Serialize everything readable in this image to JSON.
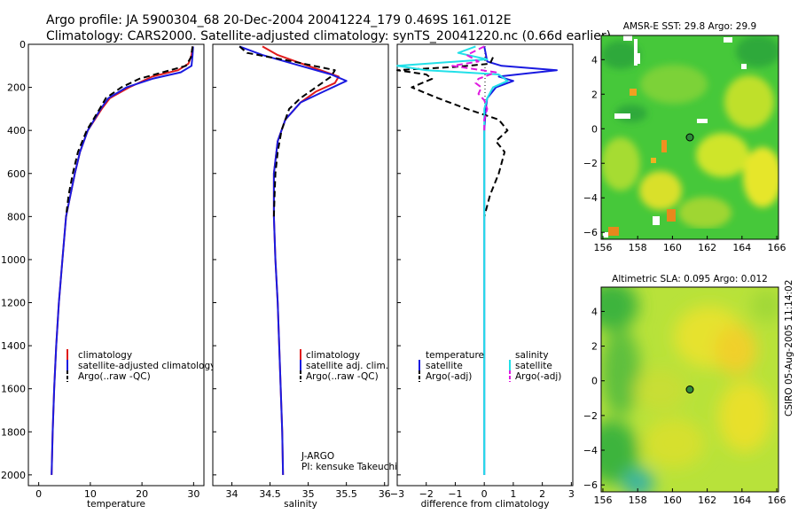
{
  "figure": {
    "title_line1": "Argo profile: JA 5900304_68 20-Dec-2004 20041224_179 0.469S 161.012E",
    "title_line2": "Climatology: CARS2000. Satellite-adjusted climatology: synTS_20041220.nc (0.66d earlier)",
    "credit": "CSIRO 05-Aug-2005 11:14:02"
  },
  "chart_data": [
    {
      "type": "line",
      "id": "temperature",
      "xlabel": "temperature",
      "ylabel": "",
      "xlim": [
        -2,
        32
      ],
      "ylim": [
        2050,
        0
      ],
      "x_ticks": [
        0,
        10,
        20,
        30
      ],
      "y_ticks": [
        0,
        200,
        400,
        600,
        800,
        1000,
        1200,
        1400,
        1600,
        1800,
        2000
      ],
      "legend": [
        "climatology",
        "satellite-adjusted climatology",
        "Argo(..raw -QC)"
      ],
      "series": [
        {
          "name": "climatology",
          "color": "#e01a1a",
          "dash": "",
          "depth": [
            10,
            50,
            90,
            120,
            150,
            200,
            250,
            300,
            400,
            500,
            600,
            800,
            1000,
            1200,
            1400,
            1600,
            1800,
            2000
          ],
          "values": [
            29.8,
            29.6,
            29.0,
            27.0,
            22.0,
            17.5,
            13.8,
            12.2,
            9.5,
            8.0,
            7.0,
            5.3,
            4.6,
            3.9,
            3.4,
            3.0,
            2.7,
            2.5
          ]
        },
        {
          "name": "satellite-adjusted climatology",
          "color": "#1a1ae0",
          "dash": "",
          "depth": [
            10,
            50,
            100,
            130,
            160,
            200,
            250,
            300,
            400,
            500,
            600,
            800,
            1000,
            1200,
            1400,
            1600,
            1800,
            2000
          ],
          "values": [
            29.9,
            29.8,
            29.6,
            27.5,
            22.0,
            17.0,
            13.5,
            12.0,
            9.5,
            8.0,
            7.0,
            5.3,
            4.6,
            3.9,
            3.4,
            3.0,
            2.7,
            2.5
          ]
        },
        {
          "name": "Argo(..raw -QC)",
          "color": "#000000",
          "dash": "7,4",
          "depth": [
            10,
            60,
            100,
            130,
            160,
            200,
            250,
            300,
            400,
            500,
            600,
            700,
            800
          ],
          "values": [
            29.8,
            29.5,
            28.5,
            24.0,
            19.5,
            16.0,
            13.0,
            11.8,
            9.3,
            7.6,
            6.6,
            5.8,
            5.3
          ]
        }
      ]
    },
    {
      "type": "line",
      "id": "salinity",
      "xlabel": "salinity",
      "ylabel": "",
      "xlim": [
        33.75,
        36.05
      ],
      "ylim": [
        2050,
        0
      ],
      "x_ticks": [
        34,
        34.5,
        35,
        35.5,
        36
      ],
      "legend": [
        "climatology",
        "satellite adj. clim.",
        "Argo(..raw -QC)"
      ],
      "annotation_lines": [
        "J-ARGO",
        "PI: kensuke Takeuchi"
      ],
      "series": [
        {
          "name": "climatology",
          "color": "#e01a1a",
          "dash": "",
          "depth": [
            10,
            50,
            100,
            150,
            180,
            220,
            270,
            350,
            450,
            600,
            800,
            1000,
            1200,
            1400,
            1600,
            1800,
            2000
          ],
          "values": [
            34.4,
            34.6,
            35.0,
            35.4,
            35.35,
            35.1,
            34.9,
            34.7,
            34.6,
            34.55,
            34.55,
            34.57,
            34.6,
            34.62,
            34.64,
            34.66,
            34.67
          ]
        },
        {
          "name": "satellite adj. clim.",
          "color": "#1a1ae0",
          "dash": "",
          "depth": [
            10,
            50,
            100,
            140,
            170,
            220,
            270,
            350,
            450,
            600,
            800,
            1000,
            1200,
            1400,
            1600,
            1800,
            2000
          ],
          "values": [
            34.1,
            34.4,
            34.9,
            35.3,
            35.5,
            35.2,
            34.9,
            34.7,
            34.6,
            34.55,
            34.55,
            34.57,
            34.6,
            34.62,
            34.64,
            34.66,
            34.67
          ]
        },
        {
          "name": "Argo(..raw -QC)",
          "color": "#000000",
          "dash": "7,4",
          "depth": [
            10,
            40,
            80,
            120,
            150,
            200,
            250,
            300,
            400,
            500,
            600,
            700,
            800
          ],
          "values": [
            34.1,
            34.2,
            34.8,
            35.35,
            35.3,
            35.1,
            34.9,
            34.75,
            34.65,
            34.6,
            34.57,
            34.56,
            34.55
          ]
        }
      ]
    },
    {
      "type": "line",
      "id": "difference",
      "xlabel": "difference from climatology",
      "ylabel": "",
      "xlim": [
        -3,
        3.05
      ],
      "ylim": [
        2050,
        0
      ],
      "x_ticks": [
        -3,
        -2,
        -1,
        0,
        1,
        2,
        3
      ],
      "legend": [
        "temperature",
        "satellite",
        "Argo(-adj)",
        "salinity",
        "satellite",
        "Argo(-adj)"
      ],
      "series": [
        {
          "name": "temperature satellite",
          "color": "#1a1ae0",
          "dash": "",
          "depth": [
            10,
            80,
            100,
            120,
            135,
            150,
            170,
            200,
            250,
            300,
            400,
            600,
            800,
            1000,
            1500,
            2000
          ],
          "values": [
            0.0,
            0.1,
            0.6,
            2.5,
            1.5,
            0.5,
            1.0,
            0.4,
            0.1,
            0.05,
            0.0,
            0.0,
            0.0,
            0.0,
            0.0,
            0.0
          ]
        },
        {
          "name": "temperature Argo(-adj)",
          "color": "#000000",
          "dash": "7,4",
          "depth": [
            60,
            90,
            105,
            120,
            140,
            160,
            200,
            250,
            300,
            350,
            400,
            450,
            500,
            600,
            700,
            800
          ],
          "values": [
            0.3,
            0.2,
            -1.0,
            -3.0,
            -2.0,
            -1.8,
            -2.5,
            -1.6,
            -0.6,
            0.5,
            0.8,
            0.4,
            0.7,
            0.5,
            0.2,
            0.0
          ]
        },
        {
          "name": "salinity satellite",
          "color": "#22e0e8",
          "dash": "",
          "depth": [
            10,
            40,
            70,
            100,
            120,
            140,
            170,
            200,
            250,
            300,
            400,
            600,
            800,
            1000,
            1500,
            2000
          ],
          "values": [
            -0.3,
            -0.9,
            0.1,
            -3.0,
            -2.0,
            0.5,
            0.8,
            0.3,
            0.1,
            0.0,
            0.0,
            0.0,
            0.0,
            0.0,
            0.0,
            0.0
          ]
        },
        {
          "name": "salinity Argo(-adj)",
          "color": "#e01ae0",
          "dash": "7,4",
          "depth": [
            10,
            50,
            80,
            100,
            130,
            160,
            180,
            200,
            230,
            260,
            300,
            350,
            400
          ],
          "values": [
            0.0,
            -0.6,
            -0.2,
            -1.1,
            0.4,
            -0.2,
            -0.3,
            -0.1,
            -0.2,
            0.0,
            0.1,
            0.0,
            0.0
          ]
        }
      ]
    },
    {
      "type": "heatmap",
      "id": "sst_map",
      "title": "AMSR-E SST: 29.8 Argo: 29.9",
      "x_ticks": [
        156,
        158,
        160,
        162,
        164,
        166
      ],
      "y_ticks": [
        4,
        2,
        0,
        -2,
        -4,
        -6
      ],
      "xlim": [
        155.9,
        166.1
      ],
      "ylim": [
        -6.4,
        5.4
      ],
      "argo_position": {
        "lon": 161.0,
        "lat": -0.5
      }
    },
    {
      "type": "heatmap",
      "id": "sla_map",
      "title": "Altimetric SLA: 0.095 Argo: 0.012",
      "x_ticks": [
        156,
        158,
        160,
        162,
        164,
        166
      ],
      "y_ticks": [
        4,
        2,
        0,
        -2,
        -4,
        -6
      ],
      "xlim": [
        155.9,
        166.1
      ],
      "ylim": [
        -6.4,
        5.4
      ],
      "argo_position": {
        "lon": 161.0,
        "lat": -0.5
      }
    }
  ]
}
